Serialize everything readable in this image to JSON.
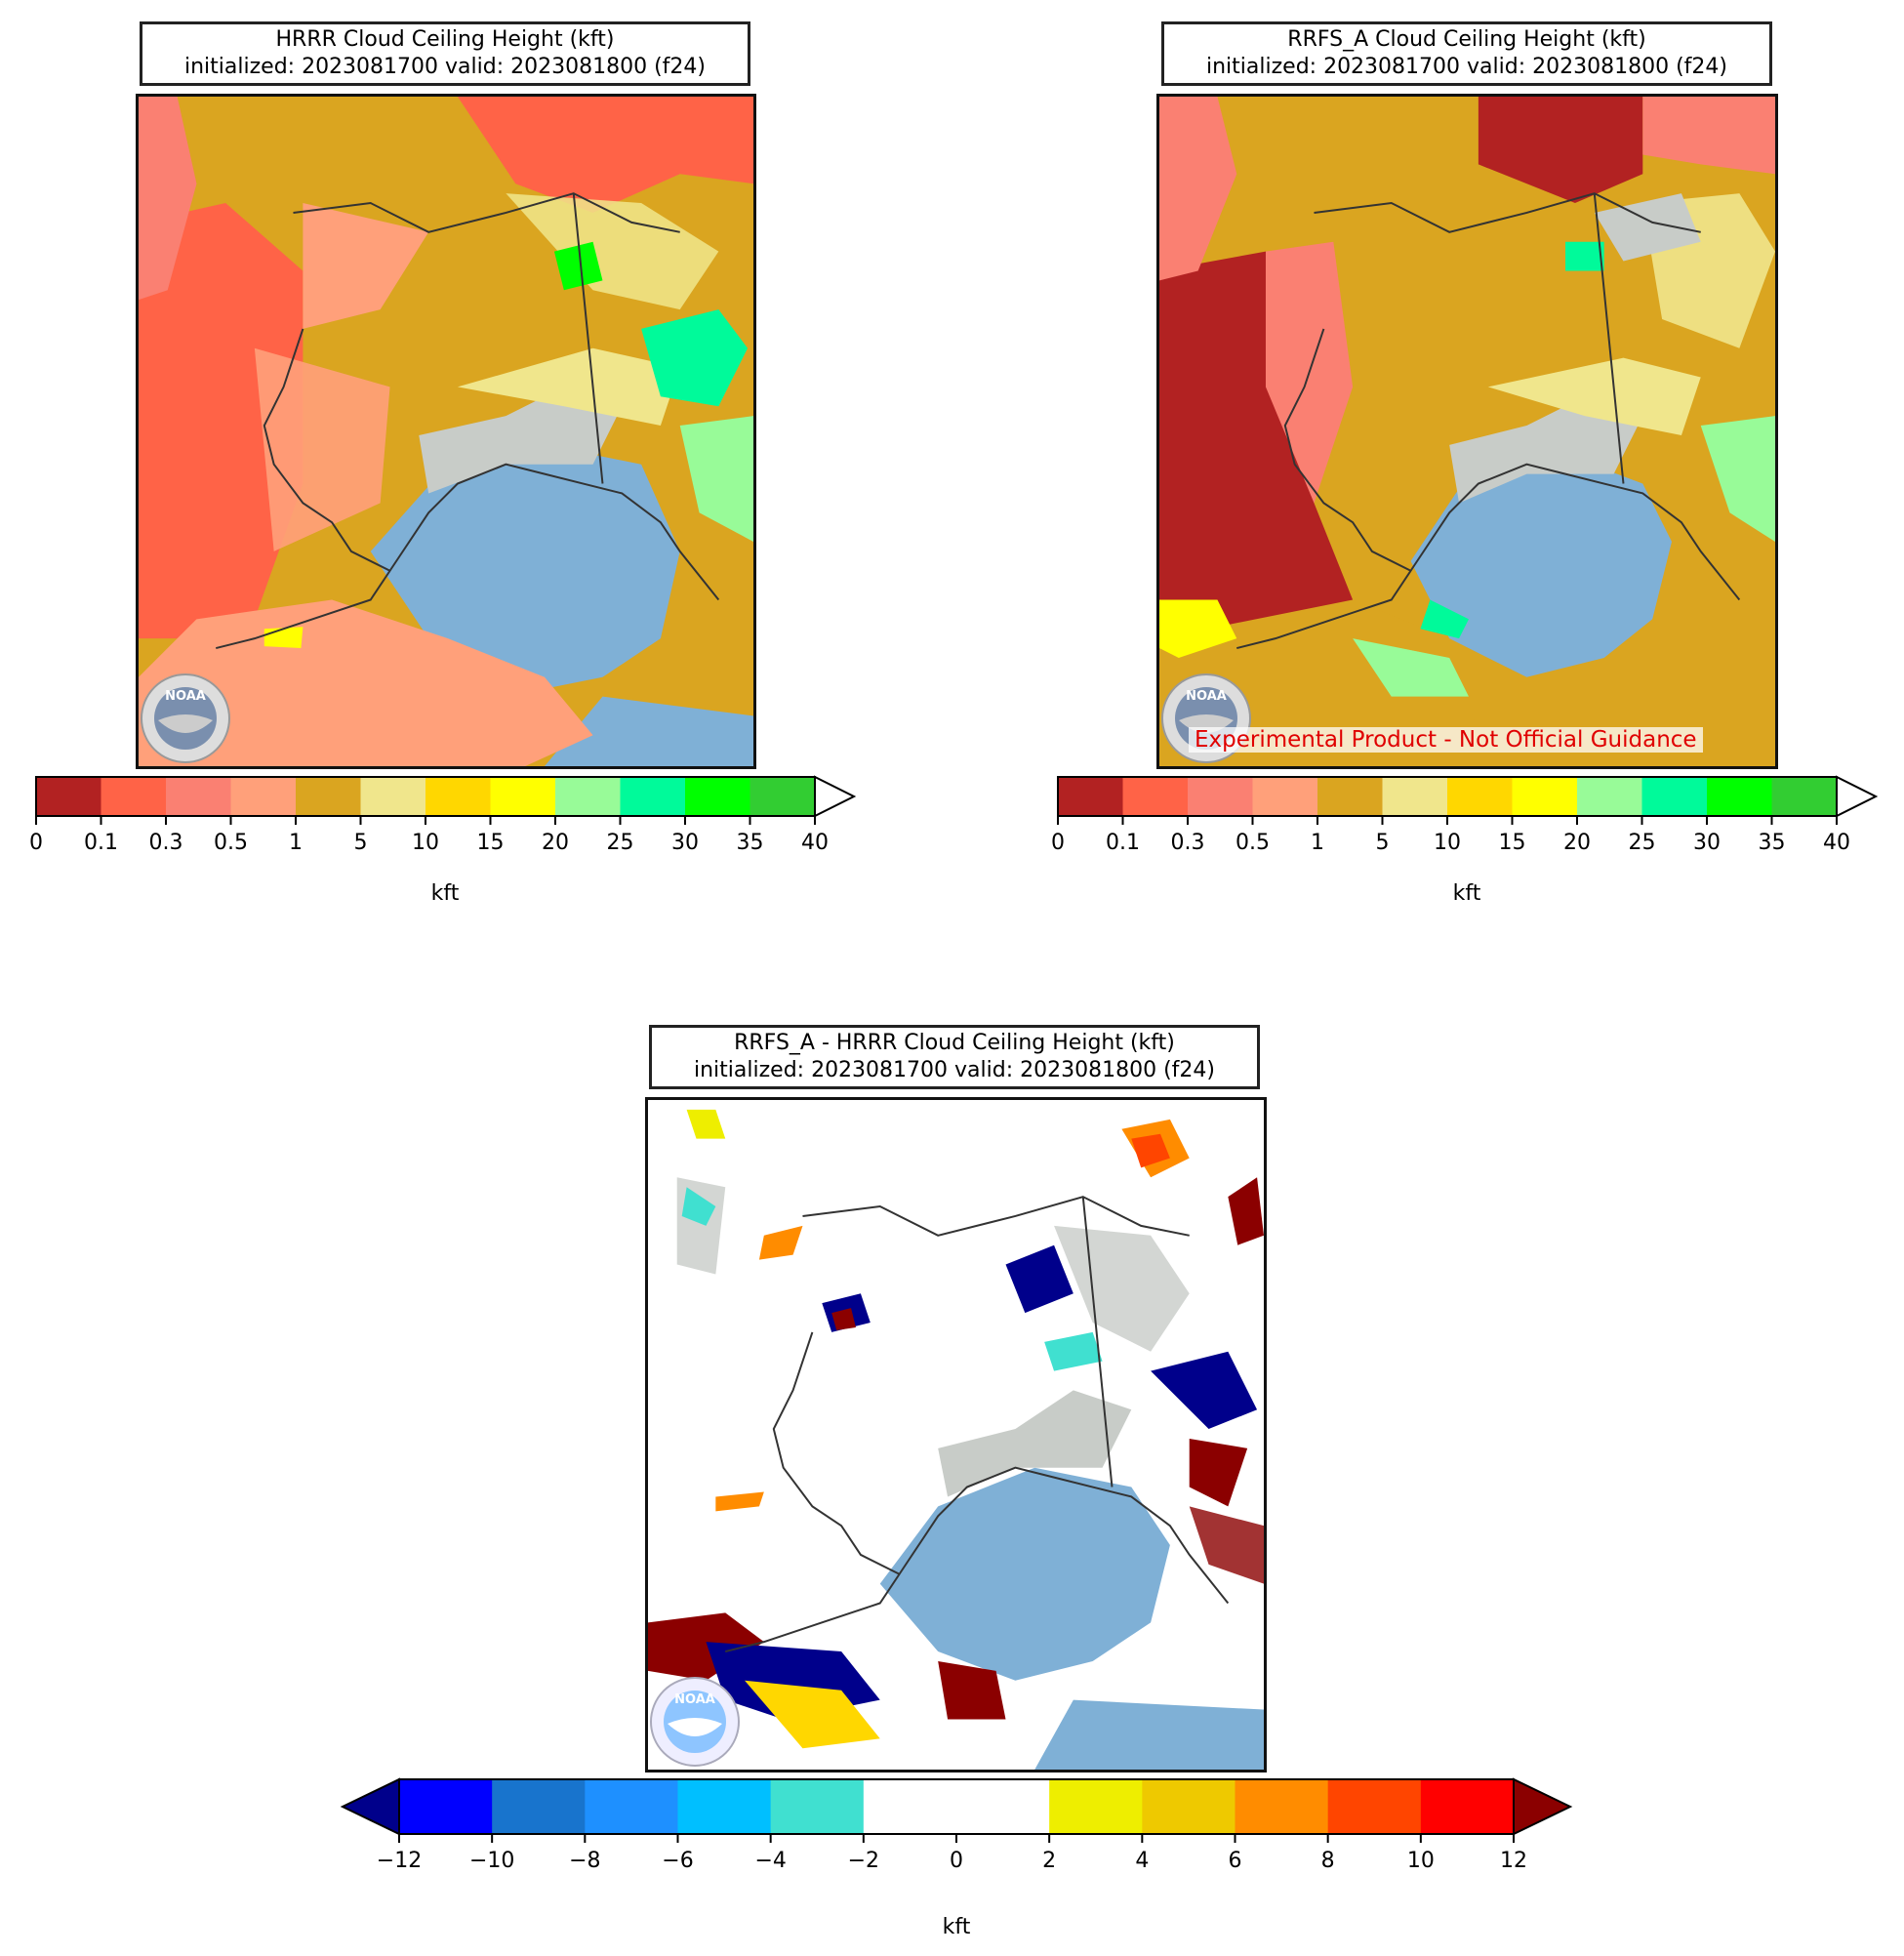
{
  "panels": [
    {
      "id": "hrrr",
      "title_line1": "HRRR Cloud Ceiling Height (kft)",
      "title_line2": "initialized: 2023081700 valid: 2023081800 (f24)",
      "logo_text": "NOAA"
    },
    {
      "id": "rrfs",
      "title_line1": "RRFS_A Cloud Ceiling Height (kft)",
      "title_line2": "initialized: 2023081700 valid: 2023081800 (f24)",
      "logo_text": "NOAA",
      "disclaimer": "Experimental Product - Not Official Guidance"
    },
    {
      "id": "diff",
      "title_line1": "RRFS_A - HRRR Cloud Ceiling Height (kft)",
      "title_line2": "initialized: 2023081700 valid: 2023081800 (f24)",
      "logo_text": "NOAA"
    }
  ],
  "ceiling_colorbar": {
    "ticks": [
      "0",
      "0.1",
      "0.3",
      "0.5",
      "1",
      "5",
      "10",
      "15",
      "20",
      "25",
      "30",
      "35",
      "40"
    ],
    "colors": [
      "#b22222",
      "#ff6347",
      "#fa8072",
      "#ffa07a",
      "#daa520",
      "#f0e68c",
      "#ffd700",
      "#ffff00",
      "#98fb98",
      "#00fa9a",
      "#00ff00",
      "#32cd32"
    ],
    "extend": "max",
    "unit": "kft"
  },
  "diff_colorbar": {
    "ticks": [
      "−12",
      "−10",
      "−8",
      "−6",
      "−4",
      "−2",
      "0",
      "2",
      "4",
      "6",
      "8",
      "10",
      "12"
    ],
    "colors": [
      "#0000ff",
      "#1874cd",
      "#1e90ff",
      "#00bfff",
      "#40e0d0",
      "#ffffff",
      "#ffffff",
      "#eeee00",
      "#eec900",
      "#ff8c00",
      "#ff4500",
      "#ff0000"
    ],
    "under_color": "#00008b",
    "over_color": "#8b0000",
    "extend": "both",
    "unit": "kft"
  },
  "map_colors": {
    "ocean": "#7fb0d6",
    "coast": "#333333",
    "terrain": "#c8ccc8"
  }
}
